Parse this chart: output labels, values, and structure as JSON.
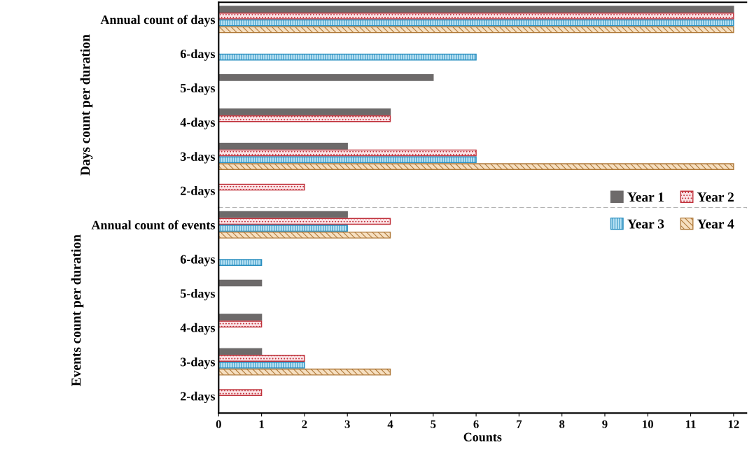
{
  "chart_data": [
    {
      "type": "bar",
      "orientation": "horizontal",
      "ylabel": "Days count per duration",
      "categories": [
        "Annual count of days",
        "6-days",
        "5-days",
        "4-days",
        "3-days",
        "2-days"
      ],
      "series": [
        {
          "color": "#6d6a6a",
          "values": [
            12,
            null,
            5,
            4,
            3,
            null
          ]
        },
        {
          "color": "#c0303a",
          "values": [
            12,
            null,
            null,
            4,
            6,
            2
          ]
        },
        {
          "color": "#2a8fc0",
          "values": [
            12,
            6,
            null,
            null,
            6,
            null
          ]
        },
        {
          "color": "#b07a3a",
          "values": [
            12,
            null,
            null,
            null,
            12,
            null
          ]
        }
      ],
      "xlim": [
        0,
        12.3
      ],
      "xticks": [
        0,
        1,
        2,
        3,
        4,
        5,
        6,
        7,
        8,
        9,
        10,
        11,
        12
      ],
      "tick_labels": "y",
      "grid": false
    },
    {
      "type": "bar",
      "orientation": "horizontal",
      "ylabel": "Events count per duration",
      "xlabel": "Counts",
      "categories": [
        "Annual count of events",
        "6-days",
        "5-days",
        "4-days",
        "3-days",
        "2-days"
      ],
      "series": [
        {
          "name": "Year 1",
          "color": "#6d6a6a",
          "values": [
            3,
            null,
            1,
            1,
            1,
            null
          ]
        },
        {
          "name": "Year 2",
          "color": "#c0303a",
          "values": [
            4,
            null,
            null,
            1,
            2,
            1
          ]
        },
        {
          "name": "Year 3",
          "color": "#2a8fc0",
          "values": [
            3,
            1,
            null,
            null,
            2,
            null
          ]
        },
        {
          "name": "Year 4",
          "color": "#b07a3a",
          "values": [
            4,
            null,
            null,
            null,
            4,
            null
          ]
        }
      ],
      "xlim": [
        0,
        12.3
      ],
      "xticks": [
        0,
        1,
        2,
        3,
        4,
        5,
        6,
        7,
        8,
        9,
        10,
        11,
        12
      ],
      "legend": "top right",
      "grid": false
    }
  ]
}
